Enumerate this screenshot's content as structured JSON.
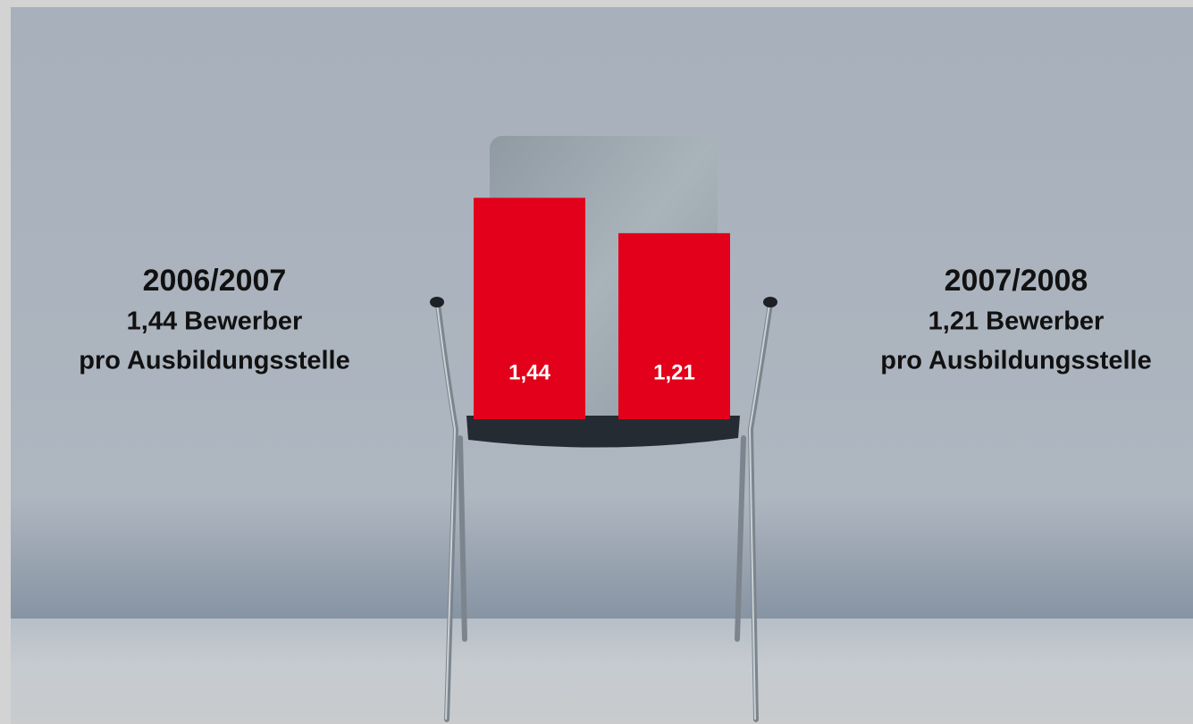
{
  "chart_data": {
    "type": "bar",
    "categories": [
      "2006/2007",
      "2007/2008"
    ],
    "values": [
      1.44,
      1.21
    ],
    "value_labels": [
      "1,44",
      "1,21"
    ],
    "annotations": [
      {
        "line1": "1,44 Bewerber",
        "line2": "pro Ausbildungsstelle"
      },
      {
        "line1": "1,21 Bewerber",
        "line2": "pro Ausbildungsstelle"
      }
    ],
    "color": "#e2001a"
  }
}
